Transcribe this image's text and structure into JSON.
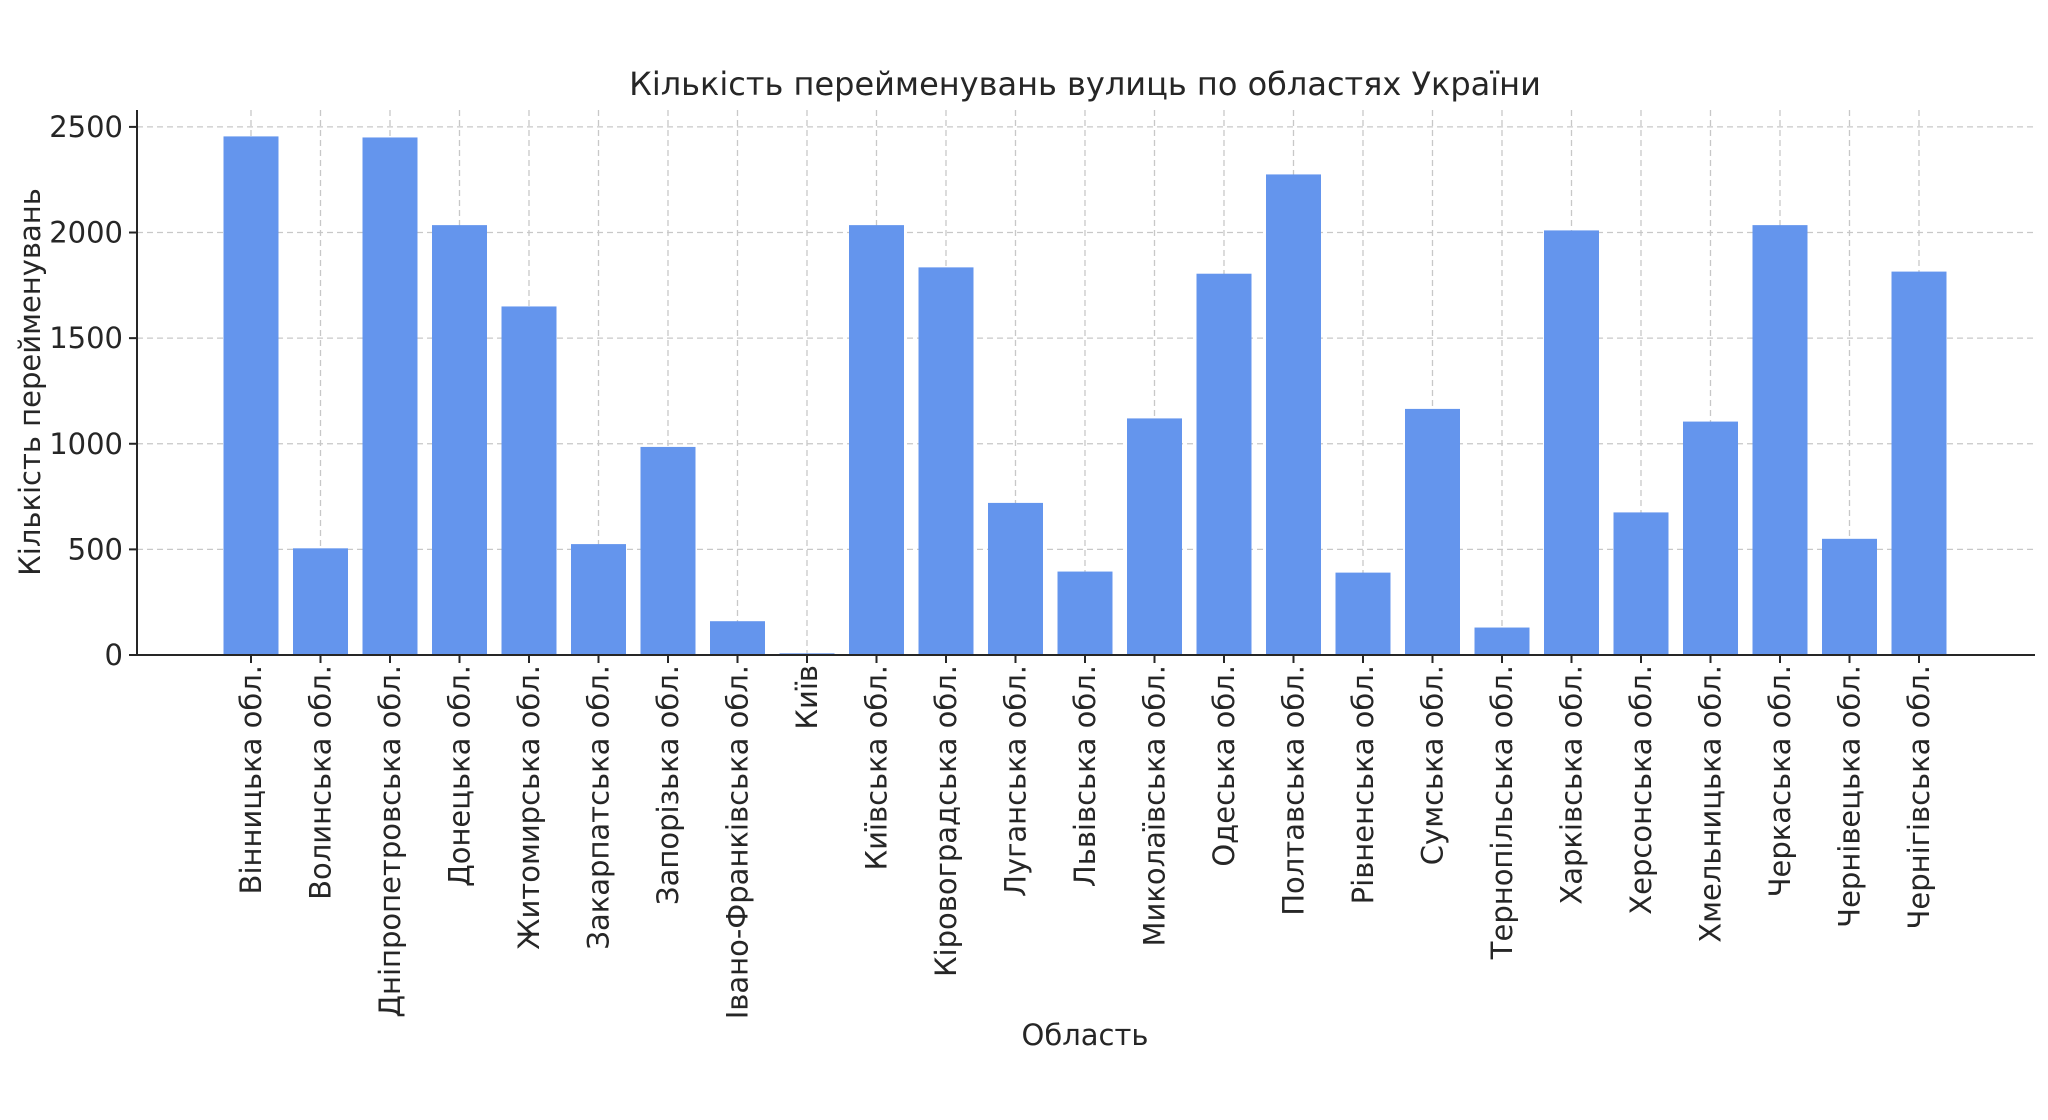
{
  "chart_data": {
    "type": "bar",
    "title": "Кількість перейменувань вулиць по областях України",
    "xlabel": "Область",
    "ylabel": "Кількість перейменувань",
    "ylim": [
      0,
      2580
    ],
    "yticks": [
      0,
      500,
      1000,
      1500,
      2000,
      2500
    ],
    "grid": true,
    "bar_color": "#6495ED",
    "categories": [
      "Вінницька обл.",
      "Волинська обл.",
      "Дніпропетровська обл.",
      "Донецька обл.",
      "Житомирська обл.",
      "Закарпатська обл.",
      "Запорізька обл.",
      "Івано-Франківська обл.",
      "Київ",
      "Київська обл.",
      "Кіровоградська обл.",
      "Луганська обл.",
      "Львівська обл.",
      "Миколаївська обл.",
      "Одеська обл.",
      "Полтавська обл.",
      "Рівненська обл.",
      "Сумська обл.",
      "Тернопільська обл.",
      "Харківська обл.",
      "Херсонська обл.",
      "Хмельницька обл.",
      "Черкаська обл.",
      "Чернівецька обл.",
      "Чернігівська обл."
    ],
    "values": [
      2455,
      505,
      2450,
      2035,
      1650,
      525,
      985,
      160,
      8,
      2035,
      1835,
      720,
      395,
      1120,
      1805,
      2275,
      390,
      1165,
      130,
      2010,
      675,
      1105,
      2035,
      550,
      1815
    ]
  }
}
